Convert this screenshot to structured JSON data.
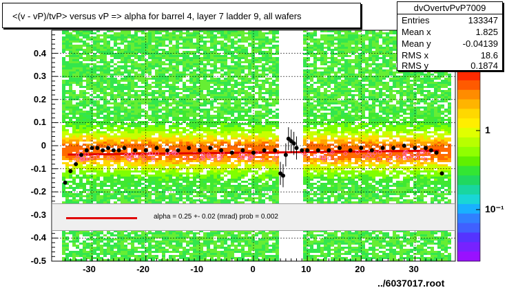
{
  "title": "<(v - vP)/tvP> versus   vP => alpha for barrel 4, layer 7 ladder 9, all wafers",
  "stats": {
    "name": "dvOvertvPvP7009",
    "rows": [
      {
        "label": "Entries",
        "value": "133347"
      },
      {
        "label": "Mean x",
        "value": "1.825"
      },
      {
        "label": "Mean y",
        "value": "-0.04139"
      },
      {
        "label": "RMS x",
        "value": "18.6"
      },
      {
        "label": "RMS y",
        "value": "0.1874"
      }
    ]
  },
  "fit_text": "alpha =     0.25 +-  0.02 (mrad) prob = 0.002",
  "filename": "../6037017.root",
  "colors": {
    "fit_line": "#e00000",
    "profile_markers": "#000000",
    "open_markers": "#ff66aa"
  },
  "chart_data": {
    "type": "heatmap",
    "x_ticks": [
      "-30",
      "-20",
      "-10",
      "0",
      "10",
      "20",
      "30"
    ],
    "y_ticks": [
      "0.4",
      "0.3",
      "0.2",
      "0.1",
      "0",
      "-0.1",
      "-0.2",
      "-0.3",
      "-0.4",
      "-0.5"
    ],
    "z_ticks": [
      "1",
      "10⁻¹"
    ],
    "xlim": [
      -37.5,
      37.5
    ],
    "ylim": [
      -0.5,
      0.5
    ],
    "z_scale": "log",
    "grid": true,
    "fit": {
      "name": "alpha",
      "slope_mrad": 0.25,
      "intercept": -0.03
    },
    "profile": {
      "x": [
        -35,
        -34,
        -33,
        -32,
        -31,
        -30,
        -29,
        -28,
        -27,
        -26,
        -25,
        -24,
        -22,
        -20,
        -18,
        -16,
        -14,
        -12,
        -10,
        -8,
        -6,
        -4,
        -2,
        0,
        2,
        4,
        5,
        5.5,
        6,
        6.5,
        7,
        7.5,
        8,
        9,
        10,
        12,
        14,
        16,
        18,
        20,
        22,
        24,
        26,
        28,
        30,
        32,
        33,
        34,
        35
      ],
      "y": [
        -0.16,
        -0.11,
        -0.08,
        -0.04,
        -0.02,
        -0.01,
        -0.01,
        -0.02,
        -0.01,
        -0.02,
        -0.02,
        -0.01,
        -0.02,
        -0.02,
        -0.01,
        -0.02,
        -0.02,
        -0.01,
        -0.02,
        -0.01,
        -0.02,
        -0.03,
        -0.02,
        -0.03,
        -0.02,
        -0.02,
        -0.12,
        -0.13,
        -0.04,
        0.03,
        0.02,
        0.01,
        -0.01,
        -0.02,
        -0.02,
        -0.02,
        -0.02,
        -0.01,
        -0.02,
        -0.01,
        -0.02,
        -0.01,
        -0.01,
        0.0,
        -0.01,
        -0.01,
        -0.02,
        -0.03,
        -0.12
      ]
    }
  }
}
